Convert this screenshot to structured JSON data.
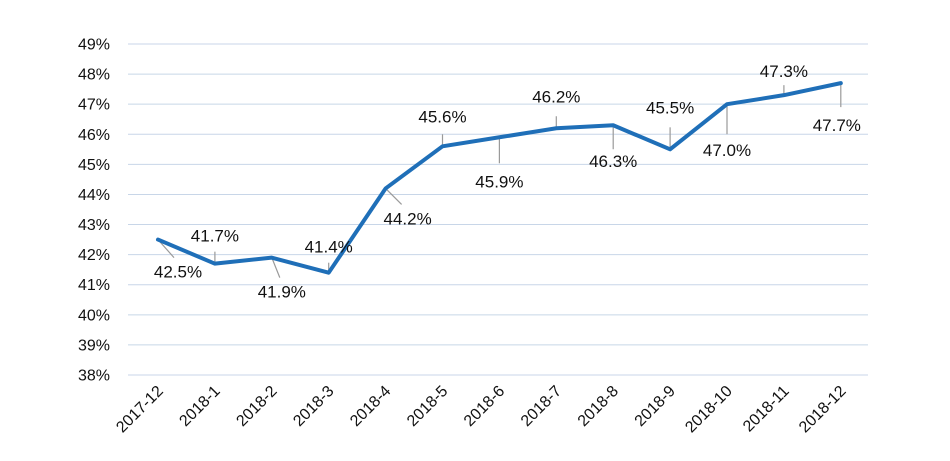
{
  "chart_data": {
    "type": "line",
    "categories": [
      "2017-12",
      "2018-1",
      "2018-2",
      "2018-3",
      "2018-4",
      "2018-5",
      "2018-6",
      "2018-7",
      "2018-8",
      "2018-9",
      "2018-10",
      "2018-11",
      "2018-12"
    ],
    "series": [
      {
        "values": [
          42.5,
          41.7,
          41.9,
          41.4,
          44.2,
          45.6,
          45.9,
          46.2,
          46.3,
          45.5,
          47.0,
          47.3,
          47.7
        ],
        "labels": [
          "42.5%",
          "41.7%",
          "41.9%",
          "41.4%",
          "44.2%",
          "45.6%",
          "45.9%",
          "46.2%",
          "46.3%",
          "45.5%",
          "47.0%",
          "47.3%",
          "47.7%"
        ]
      }
    ],
    "yticks": [
      "38%",
      "39%",
      "40%",
      "41%",
      "42%",
      "43%",
      "44%",
      "45%",
      "46%",
      "47%",
      "48%",
      "49%"
    ],
    "ylim": [
      38,
      49
    ],
    "line_color": "#1f6fb8",
    "grid": true,
    "legend": "none",
    "title": "",
    "xlabel": "",
    "ylabel": ""
  }
}
